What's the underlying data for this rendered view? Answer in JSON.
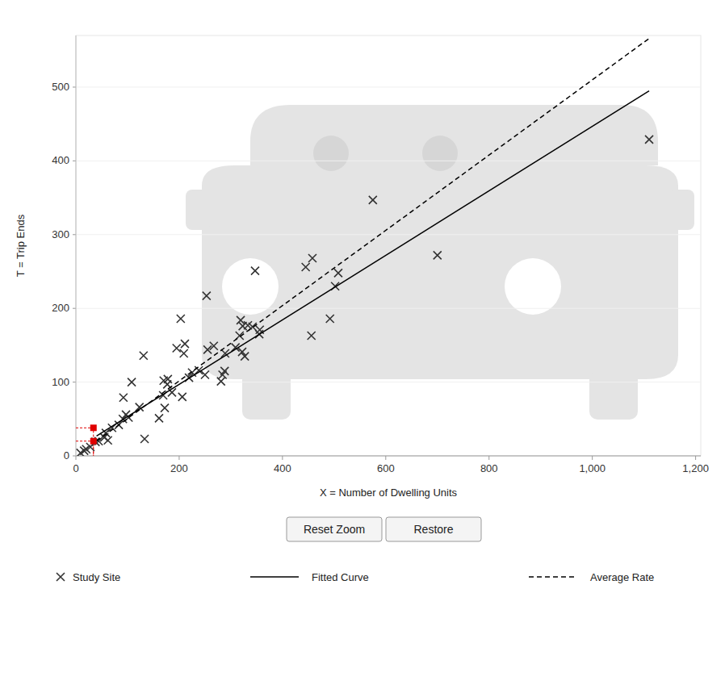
{
  "chart_data": {
    "type": "scatter",
    "x_label": "X = Number of Dwelling Units",
    "y_label": "T = Trip Ends",
    "xlim": [
      0,
      1210
    ],
    "ylim": [
      0,
      570
    ],
    "xticks": [
      0,
      200,
      400,
      600,
      800,
      {
        "value": 1000,
        "label": "1,000"
      },
      {
        "value": 1200,
        "label": "1,200"
      }
    ],
    "yticks": [
      0,
      100,
      200,
      300,
      400,
      500
    ],
    "grid": true,
    "legend": "bottom",
    "buttons": [
      "Reset Zoom",
      "Restore"
    ],
    "series": [
      {
        "name": "Study Site",
        "type": "scatter",
        "marker": "x",
        "color": "#333333",
        "x": [
          9,
          16,
          20,
          28,
          38,
          44,
          55,
          58,
          62,
          70,
          83,
          91,
          92,
          97,
          102,
          108,
          123,
          131,
          133,
          161,
          169,
          170,
          172,
          177,
          178,
          186,
          195,
          203,
          206,
          209,
          211,
          219,
          225,
          238,
          250,
          253,
          255,
          267,
          281,
          284,
          288,
          289,
          309,
          317,
          319,
          322,
          323,
          327,
          333,
          342,
          347,
          355,
          356,
          445,
          456,
          458,
          492,
          502,
          508,
          575,
          700,
          1110
        ],
        "values": [
          4,
          7,
          9,
          12,
          19,
          20,
          25,
          31,
          21,
          38,
          42,
          50,
          79,
          56,
          52,
          100,
          66,
          136,
          23,
          51,
          82,
          102,
          65,
          97,
          104,
          86,
          146,
          186,
          80,
          139,
          152,
          106,
          113,
          116,
          110,
          217,
          144,
          149,
          101,
          110,
          115,
          139,
          147,
          163,
          184,
          141,
          176,
          135,
          177,
          175,
          251,
          165,
          171,
          256,
          163,
          268,
          186,
          230,
          248,
          347,
          272,
          429
        ]
      },
      {
        "name": "Fitted Curve",
        "type": "line",
        "line_style": "solid",
        "color": "#000000",
        "x": [
          40,
          1110
        ],
        "values": [
          27,
          495
        ]
      },
      {
        "name": "Average Rate",
        "type": "line",
        "line_style": "dashed",
        "color": "#000000",
        "x": [
          40,
          1110
        ],
        "values": [
          20,
          566
        ]
      }
    ],
    "highlight": {
      "color": "#e00000",
      "x": [
        34,
        34
      ],
      "values": [
        20,
        38
      ]
    }
  }
}
